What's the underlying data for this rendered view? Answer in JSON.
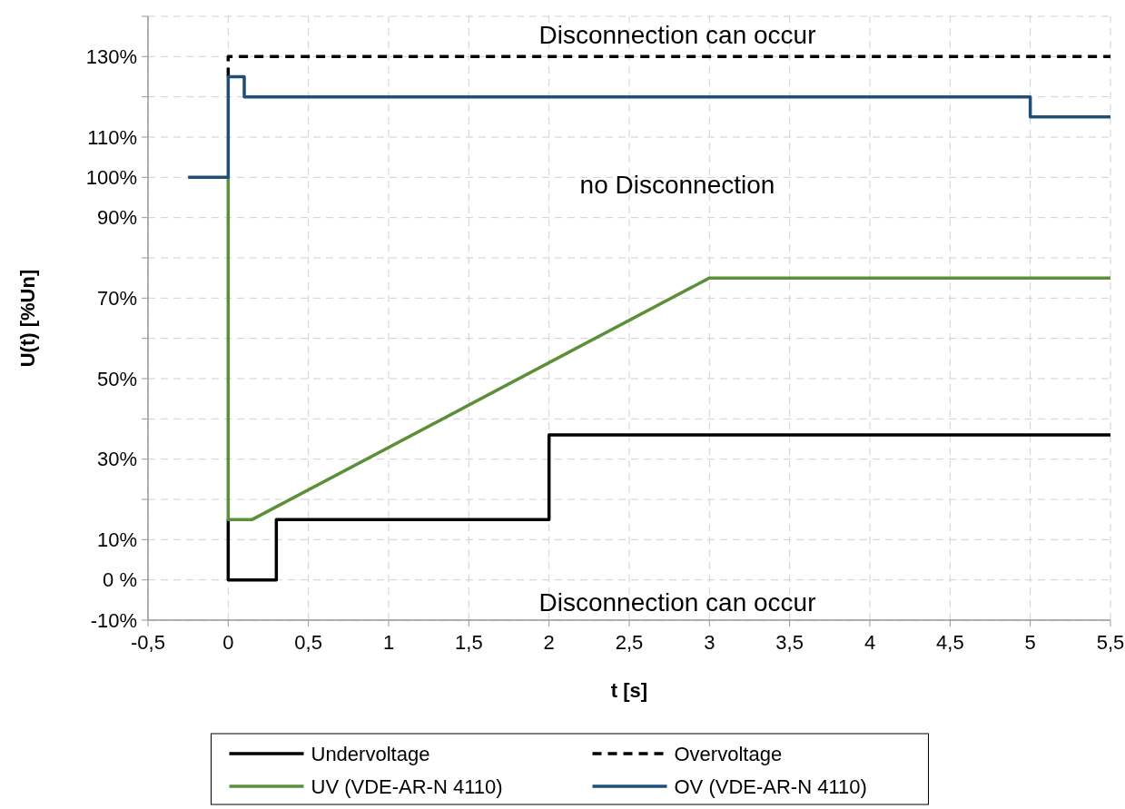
{
  "chart_data": {
    "type": "line",
    "xlabel": "t [s]",
    "ylabel": "U(t)  [%Un]",
    "xlim": [
      -0.5,
      5.5
    ],
    "xticks": [
      {
        "value": -0.5,
        "label": "-0,5"
      },
      0,
      {
        "value": 0.5,
        "label": "0,5"
      },
      1,
      {
        "value": 1.5,
        "label": "1,5"
      },
      2,
      {
        "value": 2.5,
        "label": "2,5"
      },
      3,
      {
        "value": 3.5,
        "label": "3,5"
      },
      4,
      {
        "value": 4.5,
        "label": "4,5"
      },
      5,
      {
        "value": 5.5,
        "label": "5,5"
      }
    ],
    "ylim": [
      -10,
      140
    ],
    "yticks": [
      {
        "value": -10,
        "label": "-10%"
      },
      {
        "value": 0,
        "label": "0 %"
      },
      {
        "value": 10,
        "label": "10%"
      },
      {
        "value": 20,
        "label": null
      },
      {
        "value": 30,
        "label": "30%"
      },
      {
        "value": 40,
        "label": null
      },
      {
        "value": 50,
        "label": "50%"
      },
      {
        "value": 60,
        "label": null
      },
      {
        "value": 70,
        "label": "70%"
      },
      {
        "value": 80,
        "label": null
      },
      {
        "value": 90,
        "label": "90%"
      },
      {
        "value": 100,
        "label": "100%"
      },
      {
        "value": 110,
        "label": "110%"
      },
      {
        "value": 120,
        "label": null
      },
      {
        "value": 130,
        "label": "130%"
      },
      {
        "value": 140,
        "label": null
      }
    ],
    "grid": true,
    "legend": "bottom",
    "annotations": [
      "Disconnection can occur",
      "no Disconnection",
      "Disconnection can occur"
    ],
    "series": [
      {
        "name": "Undervoltage",
        "color": "#000000",
        "line_style": "solid",
        "x": [
          0,
          0,
          0.3,
          0.3,
          2,
          2,
          5.5
        ],
        "values": [
          15,
          0,
          0,
          15,
          15,
          36,
          36
        ]
      },
      {
        "name": "Overvoltage",
        "color": "#000000",
        "line_style": "dashed",
        "x": [
          0,
          0,
          5.5
        ],
        "values": [
          125,
          130,
          130
        ]
      },
      {
        "name": "UV (VDE-AR-N 4110)",
        "color": "#5b8f3a",
        "line_style": "solid",
        "x": [
          0,
          0,
          0.15,
          3,
          5.5
        ],
        "values": [
          100,
          15,
          15,
          75,
          75
        ]
      },
      {
        "name": "OV (VDE-AR-N 4110)",
        "color": "#1f4e79",
        "line_style": "solid",
        "x": [
          -0.25,
          0,
          0,
          0.1,
          0.1,
          5,
          5,
          5.5
        ],
        "values": [
          100,
          100,
          125,
          125,
          120,
          120,
          115,
          115
        ]
      }
    ]
  }
}
